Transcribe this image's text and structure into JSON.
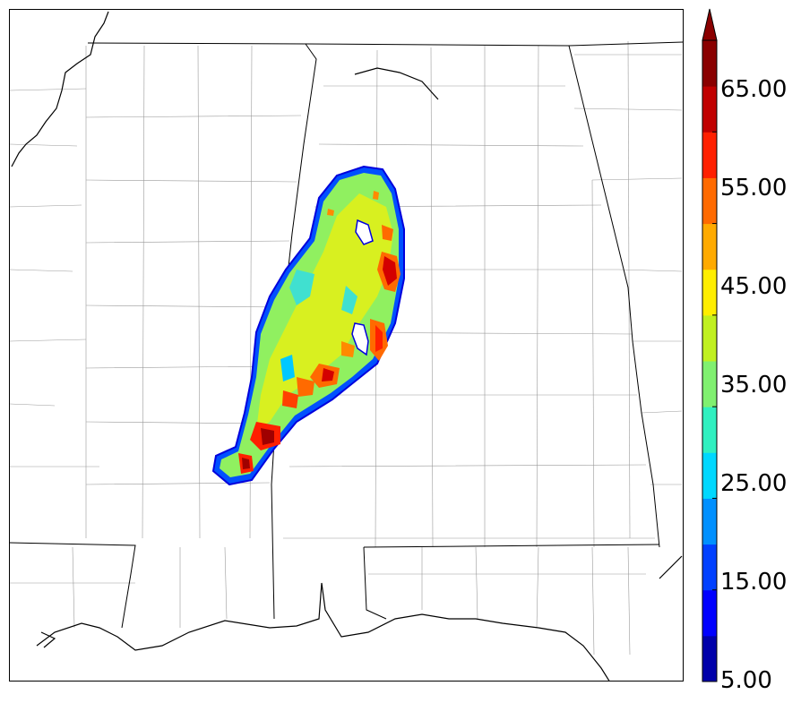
{
  "map": {
    "region": "Alabama and surrounding states",
    "field": "simulated reflectivity",
    "features": [
      "state-borders",
      "county-borders",
      "coastline",
      "precipitation-band"
    ]
  },
  "colorbar": {
    "min": 5,
    "max": 70,
    "step": 5,
    "extend": "max",
    "tick_labels": [
      "5.00",
      "15.00",
      "25.00",
      "35.00",
      "45.00",
      "55.00",
      "65.00"
    ],
    "colors": [
      "#0000aa",
      "#0000ff",
      "#0040ff",
      "#0090ff",
      "#00d8ff",
      "#30f0c0",
      "#80f070",
      "#c0f020",
      "#ffee00",
      "#ffaa00",
      "#ff6a00",
      "#ff2000",
      "#c00000",
      "#8a0000"
    ]
  }
}
